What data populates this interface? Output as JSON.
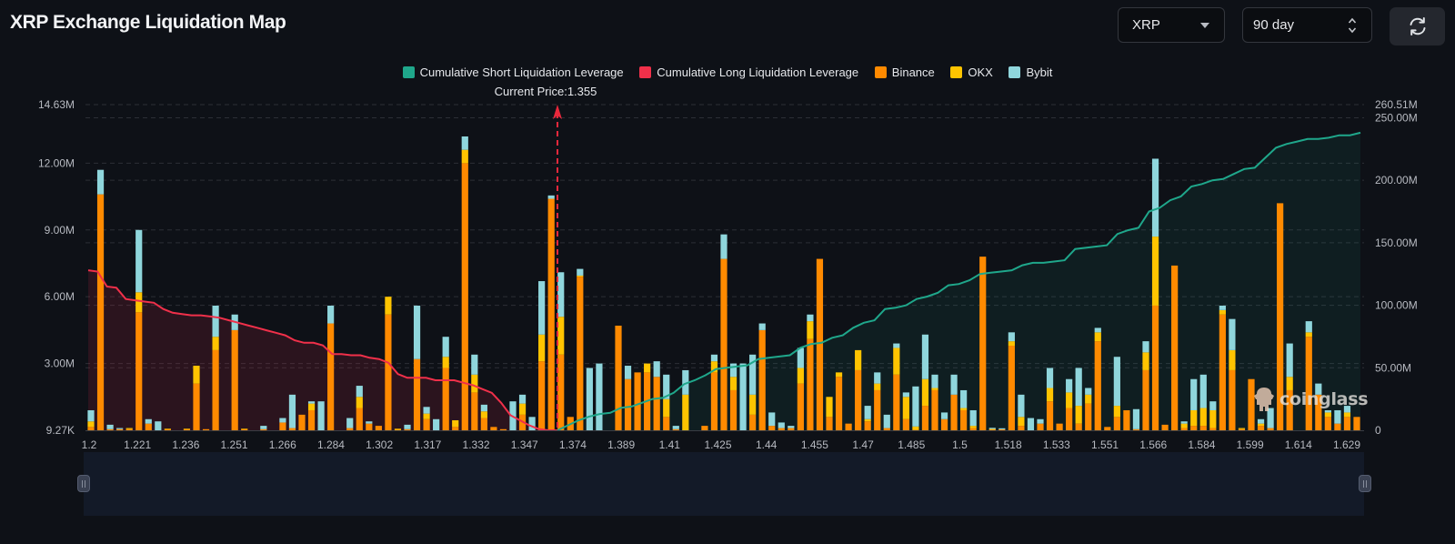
{
  "header": {
    "title": "XRP Exchange Liquidation Map",
    "coin_select": {
      "value": "XRP"
    },
    "range_select": {
      "value": "90 day"
    },
    "refresh_icon": "refresh-icon"
  },
  "legend": [
    {
      "label": "Cumulative Short Liquidation Leverage",
      "color": "#1fa78b"
    },
    {
      "label": "Cumulative Long Liquidation Leverage",
      "color": "#f0304a"
    },
    {
      "label": "Binance",
      "color": "#ff8a00"
    },
    {
      "label": "OKX",
      "color": "#ffc400"
    },
    {
      "label": "Bybit",
      "color": "#8fd6dc"
    }
  ],
  "current_price_label": "Current Price:1.355",
  "watermark": "coinglass",
  "chart_data": {
    "type": "bar",
    "title": "XRP Exchange Liquidation Map",
    "current_price": 1.355,
    "left_axis": {
      "ticks": [
        "9.27K",
        "3.00M",
        "6.00M",
        "9.00M",
        "12.00M",
        "14.63M"
      ],
      "min": 0,
      "max": 14630000
    },
    "right_axis": {
      "ticks": [
        "0",
        "50.00M",
        "100.00M",
        "150.00M",
        "200.00M",
        "250.00M",
        "260.51M"
      ],
      "min": 0,
      "max": 260510000
    },
    "x_tick_labels": [
      "1.2",
      "1.221",
      "1.236",
      "1.251",
      "1.266",
      "1.284",
      "1.302",
      "1.317",
      "1.332",
      "1.347",
      "1.374",
      "1.389",
      "1.41",
      "1.425",
      "1.44",
      "1.455",
      "1.47",
      "1.485",
      "1.5",
      "1.518",
      "1.533",
      "1.551",
      "1.566",
      "1.584",
      "1.599",
      "1.614",
      "1.629"
    ],
    "x_range": [
      1.2,
      1.629
    ],
    "grid": true,
    "legend_position": "top-center",
    "series": [
      {
        "name": "Binance",
        "color": "#ff8a00",
        "values_m": [
          0.1,
          10.6,
          0,
          0.08,
          0.02,
          0.1,
          5.3,
          0.25,
          0.02,
          0,
          0,
          1.7,
          0.1,
          3.6,
          0,
          4.5,
          0,
          0,
          0,
          0,
          0.05,
          0.01,
          0.02,
          0.02,
          0.05,
          0.7,
          4.9,
          0,
          0.3,
          0,
          0.05,
          0,
          2.3,
          0,
          0.05,
          0,
          0.9,
          0,
          0,
          0.15,
          0.25,
          0.3,
          0,
          0,
          0.05,
          0,
          0.18,
          12,
          0,
          0.45,
          0.55,
          0.6,
          0,
          0.05,
          0.01,
          0.05,
          0.3,
          0.1,
          0.01,
          0,
          0.01,
          0.05,
          0.15,
          0.01,
          0.01,
          0.1,
          0.01,
          0.05,
          0.05,
          0.01,
          0.01,
          0.01,
          0.01,
          0.01,
          0.01,
          0.01,
          0.01,
          0.01,
          0.01,
          0.01,
          0.01,
          0.01,
          0.01,
          0.01,
          0.01,
          0.01,
          0.01,
          0.01,
          0.01,
          0.01,
          0.01,
          0.01,
          0.01,
          0.01,
          0.01,
          0.01,
          0.01,
          0.01,
          0.01,
          0.01,
          0.01,
          0.01,
          0.01,
          0.01,
          0.01,
          0.01,
          0.01,
          0.01,
          0.01,
          0.01,
          0.01,
          0.01,
          0.01
        ]
      },
      {
        "name": "OKX",
        "color": "#ffc400",
        "values_m": []
      },
      {
        "name": "Bybit",
        "color": "#8fd6dc",
        "values_m": []
      }
    ],
    "bars": [
      [
        0.15,
        0.25,
        0.5
      ],
      [
        10.6,
        0,
        1.1
      ],
      [
        0.05,
        0,
        0.2
      ],
      [
        0.05,
        0,
        0.05
      ],
      [
        0.05,
        0.05,
        0
      ],
      [
        5.3,
        0.9,
        2.8
      ],
      [
        0.3,
        0,
        0.2
      ],
      [
        0,
        0,
        0.4
      ],
      [
        0.05,
        0.02,
        0
      ],
      [
        0,
        0,
        0
      ],
      [
        0.05,
        0.02,
        0
      ],
      [
        2.1,
        0.8,
        0
      ],
      [
        0.05,
        0,
        0
      ],
      [
        3.6,
        0.6,
        1.4
      ],
      [
        0,
        0,
        0
      ],
      [
        4.5,
        0,
        0.7
      ],
      [
        0.05,
        0.02,
        0
      ],
      [
        0,
        0,
        0
      ],
      [
        0.05,
        0,
        0.15
      ],
      [
        0,
        0,
        0
      ],
      [
        0.35,
        0,
        0.2
      ],
      [
        0.1,
        0,
        1.5
      ],
      [
        0.7,
        0,
        0
      ],
      [
        0.9,
        0.3,
        0.1
      ],
      [
        0,
        0,
        1.3
      ],
      [
        4.8,
        0,
        0.8
      ],
      [
        0,
        0,
        0
      ],
      [
        0.1,
        0,
        0.45
      ],
      [
        1.0,
        0.5,
        0.5
      ],
      [
        0.3,
        0,
        0.1
      ],
      [
        0.2,
        0,
        0
      ],
      [
        5.2,
        0.8,
        0
      ],
      [
        0.02,
        0.05,
        0
      ],
      [
        0.05,
        0,
        0.2
      ],
      [
        3.2,
        0,
        2.4
      ],
      [
        0.5,
        0.25,
        0.3
      ],
      [
        0,
        0,
        0.5
      ],
      [
        2.8,
        0.5,
        0.9
      ],
      [
        0.15,
        0.3,
        0
      ],
      [
        12.0,
        0.6,
        0.6
      ],
      [
        1.7,
        0.8,
        0.9
      ],
      [
        0.55,
        0.3,
        0.3
      ],
      [
        0.15,
        0,
        0
      ],
      [
        0.05,
        0,
        0
      ],
      [
        0,
        0,
        1.3
      ],
      [
        0.7,
        0.5,
        0.4
      ],
      [
        0,
        0,
        0.6
      ],
      [
        3.1,
        1.2,
        2.4
      ],
      [
        10.4,
        0,
        0.15
      ],
      [
        3.4,
        1.7,
        2.0
      ],
      [
        0.6,
        0,
        0
      ],
      [
        6.9,
        0.05,
        0.3
      ],
      [
        0,
        0,
        2.8
      ],
      [
        0,
        0,
        3.0
      ],
      [
        0,
        0,
        0
      ],
      [
        4.7,
        0,
        0
      ],
      [
        2.3,
        0,
        0.6
      ],
      [
        2.6,
        0,
        0
      ],
      [
        2.6,
        0.4,
        0
      ],
      [
        2.4,
        0,
        0.7
      ],
      [
        0.6,
        0.8,
        1.1
      ],
      [
        0.05,
        0,
        0.15
      ],
      [
        0,
        1.6,
        1.1
      ],
      [
        0,
        0,
        0
      ],
      [
        0.2,
        0,
        0
      ],
      [
        2.6,
        0.5,
        0.3
      ],
      [
        7.7,
        0,
        1.1
      ],
      [
        1.8,
        0.6,
        0.6
      ],
      [
        0,
        0,
        3.0
      ],
      [
        0.7,
        0.9,
        1.8
      ],
      [
        4.5,
        0,
        0.3
      ],
      [
        0.2,
        0,
        0.6
      ],
      [
        0.1,
        0,
        0.25
      ],
      [
        0.1,
        0,
        0.1
      ],
      [
        2.1,
        0.7,
        0.9
      ],
      [
        4.1,
        0.8,
        0.3
      ],
      [
        7.7,
        0,
        0
      ],
      [
        0.6,
        0.9,
        0
      ],
      [
        2.4,
        0.2,
        0
      ],
      [
        0.3,
        0,
        0
      ],
      [
        2.7,
        0.9,
        0
      ],
      [
        0.4,
        0.1,
        0.6
      ],
      [
        1.8,
        0.3,
        0.5
      ],
      [
        0.1,
        0,
        0.6
      ],
      [
        2.5,
        1.2,
        0.2
      ],
      [
        0.5,
        1.0,
        0.2
      ],
      [
        0.02,
        0.15,
        1.8
      ],
      [
        1.1,
        1.2,
        2.0
      ],
      [
        1.8,
        0.1,
        0.6
      ],
      [
        0.5,
        0,
        0.3
      ],
      [
        1.6,
        0,
        0.9
      ],
      [
        0.9,
        0.1,
        0.8
      ],
      [
        0.1,
        0.1,
        0.7
      ],
      [
        7.8,
        0,
        0
      ],
      [
        0.04,
        0.02,
        0.05
      ],
      [
        0.04,
        0,
        0.05
      ],
      [
        3.8,
        0.2,
        0.4
      ],
      [
        0.2,
        0.4,
        1.0
      ],
      [
        0,
        0,
        0.55
      ],
      [
        0.3,
        0,
        0.2
      ],
      [
        1.3,
        0.6,
        0.9
      ],
      [
        0.3,
        0,
        0
      ],
      [
        1.0,
        0.7,
        0.6
      ],
      [
        0.3,
        0.8,
        1.7
      ],
      [
        1.2,
        0.4,
        0.3
      ],
      [
        4.0,
        0.4,
        0.2
      ],
      [
        0.15,
        0,
        0
      ],
      [
        0.6,
        0.5,
        2.2
      ],
      [
        0.9,
        0,
        0
      ],
      [
        0.05,
        0,
        0.9
      ],
      [
        2.7,
        0.8,
        0.5
      ],
      [
        5.6,
        3.1,
        3.5
      ],
      [
        0.25,
        0,
        0
      ],
      [
        7.4,
        0,
        0
      ],
      [
        0.1,
        0.2,
        0.1
      ],
      [
        0.2,
        0.7,
        1.4
      ],
      [
        0.2,
        0.8,
        1.5
      ],
      [
        0.1,
        0.8,
        0.4
      ],
      [
        5.2,
        0.2,
        0.2
      ],
      [
        2.7,
        0.9,
        1.4
      ],
      [
        0.05,
        0.05,
        0
      ],
      [
        2.3,
        0,
        0
      ],
      [
        0.2,
        0.1,
        0.2
      ],
      [
        0.1,
        0,
        0.9
      ],
      [
        10.2,
        0,
        0
      ],
      [
        1.8,
        0.6,
        1.5
      ],
      [
        0,
        0,
        0
      ],
      [
        4.2,
        0.2,
        0.5
      ],
      [
        1.6,
        0,
        0.5
      ],
      [
        0.6,
        0.2,
        0.1
      ],
      [
        0.3,
        0,
        0.6
      ],
      [
        0.6,
        0.2,
        0.3
      ],
      [
        0.6,
        0,
        0
      ]
    ],
    "long_cumulative_m": [
      128,
      127,
      115,
      114,
      105,
      104,
      103,
      102,
      97,
      94,
      93,
      92,
      92,
      91,
      90,
      88,
      86,
      84,
      82,
      80,
      78,
      76,
      72,
      70,
      70,
      68,
      61,
      61,
      60,
      60,
      58,
      57,
      54,
      45,
      42,
      42,
      42,
      40,
      40,
      40,
      38,
      36,
      33,
      30,
      22,
      12,
      8,
      4,
      1,
      0,
      0
    ],
    "short_cumulative_m": [
      0,
      4,
      8,
      11,
      13,
      14,
      18,
      19,
      22,
      25,
      26,
      30,
      37,
      40,
      44,
      49,
      50,
      51,
      52,
      57,
      58,
      59,
      60,
      66,
      69,
      70,
      74,
      76,
      82,
      86,
      88,
      97,
      98,
      100,
      105,
      107,
      110,
      116,
      117,
      120,
      125,
      126,
      127,
      128,
      132,
      134,
      134,
      135,
      136,
      145,
      146,
      147,
      148,
      157,
      160,
      162,
      175,
      178,
      184,
      187,
      195,
      197,
      200,
      201,
      205,
      209,
      210,
      218,
      226,
      229,
      231,
      233,
      233,
      234,
      236,
      236,
      238
    ]
  }
}
